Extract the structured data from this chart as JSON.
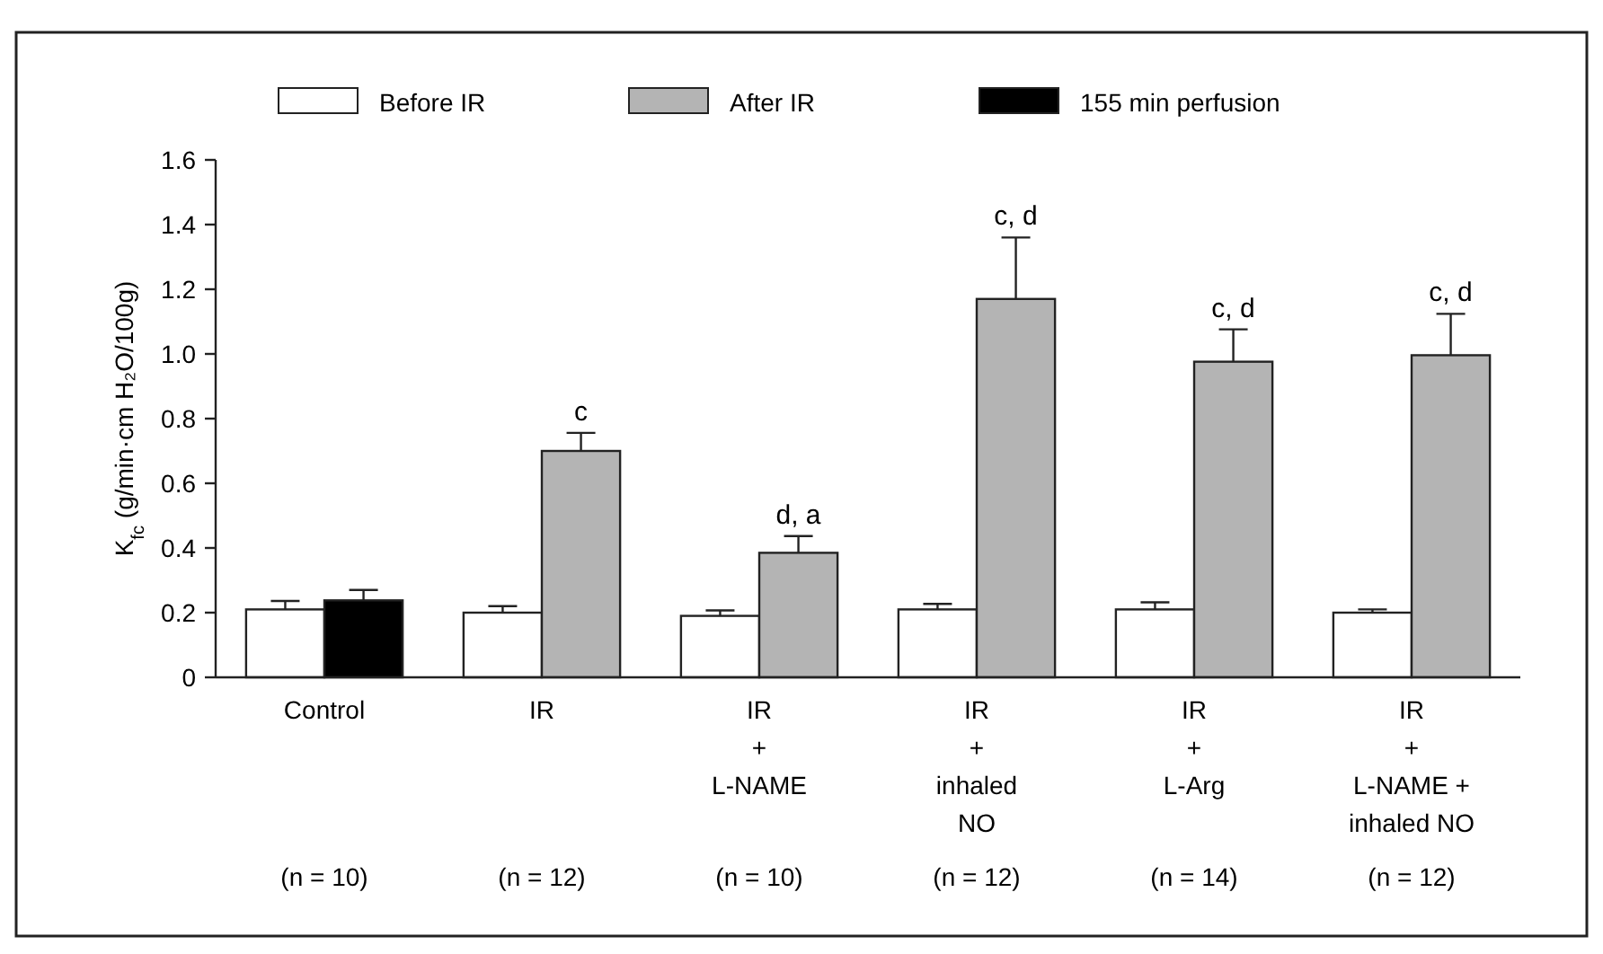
{
  "chart_data": {
    "type": "bar",
    "categories": [
      "Control",
      "IR",
      "IR\n+\nL-NAME",
      "IR\n+\ninhaled\nNO",
      "IR\n+\nL-Arg",
      "IR\n+\nL-NAME +\ninhaled NO"
    ],
    "ylabel": "K$_{fc}$ (g/min·cm H₂O/100g)",
    "ylim": [
      0,
      1.6
    ],
    "yticks": [
      0,
      0.2,
      0.4,
      0.6,
      0.8,
      {
        "value": 1,
        "label": "1.0"
      },
      1.2,
      1.4,
      1.6
    ],
    "legend": "top",
    "series": [
      {
        "name": "Before IR",
        "color": "#ffffff",
        "values": [
          0.21,
          0.2,
          0.19,
          0.21,
          0.21,
          0.2
        ],
        "errors": [
          0.026,
          0.02,
          0.017,
          0.017,
          0.022,
          0.01
        ]
      },
      {
        "name": "After IR",
        "color": "#b4b4b4",
        "values": [
          null,
          0.7,
          0.385,
          1.17,
          0.976,
          0.996
        ],
        "errors": [
          null,
          0.056,
          0.052,
          0.19,
          0.1,
          0.128
        ]
      },
      {
        "name": "155 min perfusion",
        "color": "#000000",
        "values": [
          0.238,
          null,
          null,
          null,
          null,
          null
        ],
        "errors": [
          0.032,
          null,
          null,
          null,
          null,
          null
        ]
      }
    ],
    "annotations": [
      {
        "text": "c",
        "x": "IR",
        "y": 0.7
      },
      {
        "text": "d, a",
        "x": "IR\n+\nL-NAME",
        "y": 0.385
      },
      {
        "text": "c, d",
        "x": "IR\n+\ninhaled\nNO",
        "y": 1.17
      },
      {
        "text": "c, d",
        "x": "IR\n+\nL-Arg",
        "y": 0.976
      },
      {
        "text": "c, d",
        "x": "IR\n+\nL-NAME +\ninhaled NO",
        "y": 0.996
      },
      "(n = 10)",
      "(n = 12)",
      "(n = 10)",
      "(n = 12)",
      "(n = 14)",
      "(n = 12)"
    ]
  }
}
